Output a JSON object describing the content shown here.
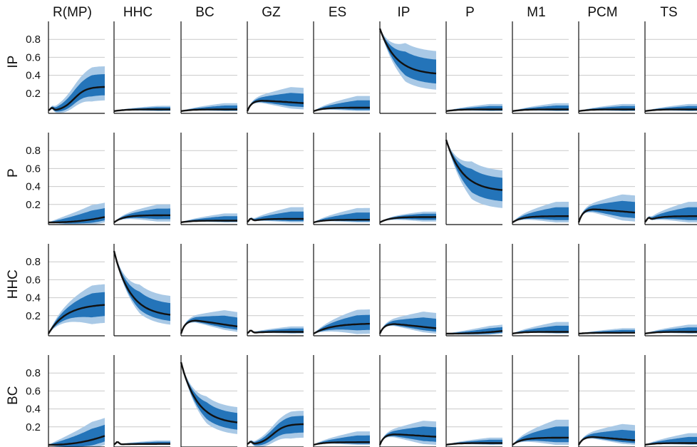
{
  "chart_data": {
    "type": "area",
    "columns": [
      "R(MP)",
      "HHC",
      "BC",
      "GZ",
      "ES",
      "IP",
      "P",
      "M1",
      "PCM",
      "TS"
    ],
    "rows": [
      "IP",
      "P",
      "HHC",
      "BC"
    ],
    "y_ticks": [
      "0.8",
      "0.6",
      "0.4",
      "0.2"
    ],
    "ylim": [
      0,
      1
    ],
    "grid": true,
    "colors": {
      "outer_band": "#a9c9e6",
      "inner_band": "#2474b9",
      "median": "#111111",
      "grid": "#c9c9c9"
    },
    "panels": [
      [
        {
          "type": "sig",
          "end": 0.27,
          "lo": 0.12,
          "hi": 0.5,
          "bump": true
        },
        {
          "type": "flat",
          "end": 0.02,
          "lo": 0.0,
          "hi": 0.06
        },
        {
          "type": "flat",
          "end": 0.02,
          "lo": 0.0,
          "hi": 0.09
        },
        {
          "type": "hump",
          "peak": 0.12,
          "end": 0.09,
          "lo": 0.02,
          "hi": 0.26
        },
        {
          "type": "flat",
          "end": 0.04,
          "lo": 0.0,
          "hi": 0.17
        },
        {
          "type": "decay",
          "end": 0.42,
          "lo": 0.24,
          "hi": 0.67
        },
        {
          "type": "flat",
          "end": 0.02,
          "lo": 0.0,
          "hi": 0.08
        },
        {
          "type": "flat",
          "end": 0.02,
          "lo": 0.0,
          "hi": 0.09
        },
        {
          "type": "flat",
          "end": 0.02,
          "lo": 0.0,
          "hi": 0.08
        },
        {
          "type": "flat",
          "end": 0.02,
          "lo": 0.0,
          "hi": 0.08
        }
      ],
      [
        {
          "type": "late",
          "end": 0.06,
          "lo": 0.0,
          "hi": 0.22
        },
        {
          "type": "flat",
          "end": 0.08,
          "lo": 0.01,
          "hi": 0.2
        },
        {
          "type": "flat",
          "end": 0.02,
          "lo": 0.0,
          "hi": 0.1
        },
        {
          "type": "flat",
          "end": 0.04,
          "lo": 0.0,
          "hi": 0.17,
          "bump": true
        },
        {
          "type": "flat",
          "end": 0.03,
          "lo": 0.0,
          "hi": 0.16
        },
        {
          "type": "flat",
          "end": 0.06,
          "lo": 0.01,
          "hi": 0.12
        },
        {
          "type": "decay",
          "end": 0.36,
          "lo": 0.16,
          "hi": 0.58
        },
        {
          "type": "flat",
          "end": 0.07,
          "lo": 0.0,
          "hi": 0.23
        },
        {
          "type": "hump",
          "peak": 0.15,
          "end": 0.11,
          "lo": 0.01,
          "hi": 0.3
        },
        {
          "type": "flat",
          "end": 0.07,
          "lo": 0.0,
          "hi": 0.23,
          "bump": true
        }
      ],
      [
        {
          "type": "sat",
          "end": 0.32,
          "lo": 0.12,
          "hi": 0.55
        },
        {
          "type": "decay",
          "end": 0.21,
          "lo": 0.1,
          "hi": 0.42
        },
        {
          "type": "hump",
          "peak": 0.15,
          "end": 0.08,
          "lo": 0.02,
          "hi": 0.24
        },
        {
          "type": "flat",
          "end": 0.02,
          "lo": 0.0,
          "hi": 0.08,
          "bump": true
        },
        {
          "type": "sat",
          "end": 0.11,
          "lo": 0.0,
          "hi": 0.27
        },
        {
          "type": "hump",
          "peak": 0.11,
          "end": 0.06,
          "lo": 0.0,
          "hi": 0.23
        },
        {
          "type": "late",
          "end": 0.03,
          "lo": 0.0,
          "hi": 0.1
        },
        {
          "type": "flat",
          "end": 0.02,
          "lo": 0.0,
          "hi": 0.13
        },
        {
          "type": "flat",
          "end": 0.01,
          "lo": 0.0,
          "hi": 0.06
        },
        {
          "type": "flat",
          "end": 0.02,
          "lo": 0.0,
          "hi": 0.1
        }
      ],
      [
        {
          "type": "late",
          "end": 0.1,
          "lo": 0.0,
          "hi": 0.3
        },
        {
          "type": "flat",
          "end": 0.01,
          "lo": 0.0,
          "hi": 0.05,
          "bump": true
        },
        {
          "type": "decay",
          "end": 0.25,
          "lo": 0.12,
          "hi": 0.42
        },
        {
          "type": "sig",
          "end": 0.23,
          "lo": 0.08,
          "hi": 0.38,
          "bump": true
        },
        {
          "type": "flat",
          "end": 0.03,
          "lo": 0.0,
          "hi": 0.15
        },
        {
          "type": "hump",
          "peak": 0.12,
          "end": 0.09,
          "lo": 0.0,
          "hi": 0.26
        },
        {
          "type": "flat",
          "end": 0.02,
          "lo": 0.0,
          "hi": 0.08
        },
        {
          "type": "flat",
          "end": 0.08,
          "lo": 0.0,
          "hi": 0.28
        },
        {
          "type": "hump",
          "peak": 0.09,
          "end": 0.05,
          "lo": 0.0,
          "hi": 0.22
        },
        {
          "type": "flat",
          "end": 0.02,
          "lo": 0.0,
          "hi": 0.13
        }
      ]
    ]
  }
}
